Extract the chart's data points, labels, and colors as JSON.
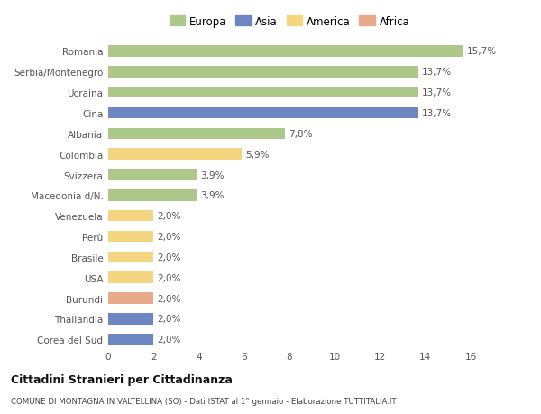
{
  "categories": [
    "Romania",
    "Serbia/Montenegro",
    "Ucraina",
    "Cina",
    "Albania",
    "Colombia",
    "Svizzera",
    "Macedonia d/N.",
    "Venezuela",
    "Perù",
    "Brasile",
    "USA",
    "Burundi",
    "Thailandia",
    "Corea del Sud"
  ],
  "values": [
    15.7,
    13.7,
    13.7,
    13.7,
    7.8,
    5.9,
    3.9,
    3.9,
    2.0,
    2.0,
    2.0,
    2.0,
    2.0,
    2.0,
    2.0
  ],
  "bar_colors": [
    "#adc98a",
    "#adc98a",
    "#adc98a",
    "#6b86c0",
    "#adc98a",
    "#f5d580",
    "#adc98a",
    "#adc98a",
    "#f5d580",
    "#f5d580",
    "#f5d580",
    "#f5d580",
    "#e8aa88",
    "#6b86c0",
    "#6b86c0"
  ],
  "labels": [
    "15,7%",
    "13,7%",
    "13,7%",
    "13,7%",
    "7,8%",
    "5,9%",
    "3,9%",
    "3,9%",
    "2,0%",
    "2,0%",
    "2,0%",
    "2,0%",
    "2,0%",
    "2,0%",
    "2,0%"
  ],
  "legend": {
    "Europa": "#adc98a",
    "Asia": "#6b86c0",
    "America": "#f5d580",
    "Africa": "#e8aa88"
  },
  "xlim": [
    0,
    16
  ],
  "xticks": [
    0,
    2,
    4,
    6,
    8,
    10,
    12,
    14,
    16
  ],
  "title": "Cittadini Stranieri per Cittadinanza",
  "subtitle": "COMUNE DI MONTAGNA IN VALTELLINA (SO) - Dati ISTAT al 1° gennaio - Elaborazione TUTTITALIA.IT",
  "background_color": "#ffffff",
  "bar_height": 0.55
}
